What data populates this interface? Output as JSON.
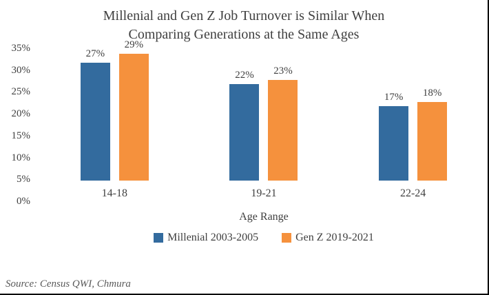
{
  "chart_data": {
    "type": "bar",
    "title": "Millenial and Gen Z Job Turnover is Similar When Comparing Generations at the Same Ages",
    "title_lines": [
      "Millenial and Gen Z Job Turnover is Similar When",
      "Comparing Generations at the Same Ages"
    ],
    "categories": [
      "14-18",
      "19-21",
      "22-24"
    ],
    "series": [
      {
        "name": "Millenial 2003-2005",
        "color": "#336B9E",
        "values": [
          27,
          22,
          17
        ],
        "labels": [
          "27%",
          "22%",
          "17%"
        ]
      },
      {
        "name": "Gen Z 2019-2021",
        "color": "#F5913D",
        "values": [
          29,
          23,
          18
        ],
        "labels": [
          "29%",
          "23%",
          "18%"
        ]
      }
    ],
    "xlabel": "Age Range",
    "ylabel": "",
    "ylim": [
      0,
      35
    ],
    "ytick_step": 5,
    "yticks": [
      "35%",
      "30%",
      "25%",
      "20%",
      "15%",
      "10%",
      "5%",
      "0%"
    ],
    "grid": false,
    "legend_position": "bottom",
    "value_suffix": "%"
  },
  "source_note": "Source: Census QWI, Chmura",
  "colors": {
    "text": "#3F3F3F",
    "source_text": "#595959",
    "frame_border": "#000000"
  }
}
